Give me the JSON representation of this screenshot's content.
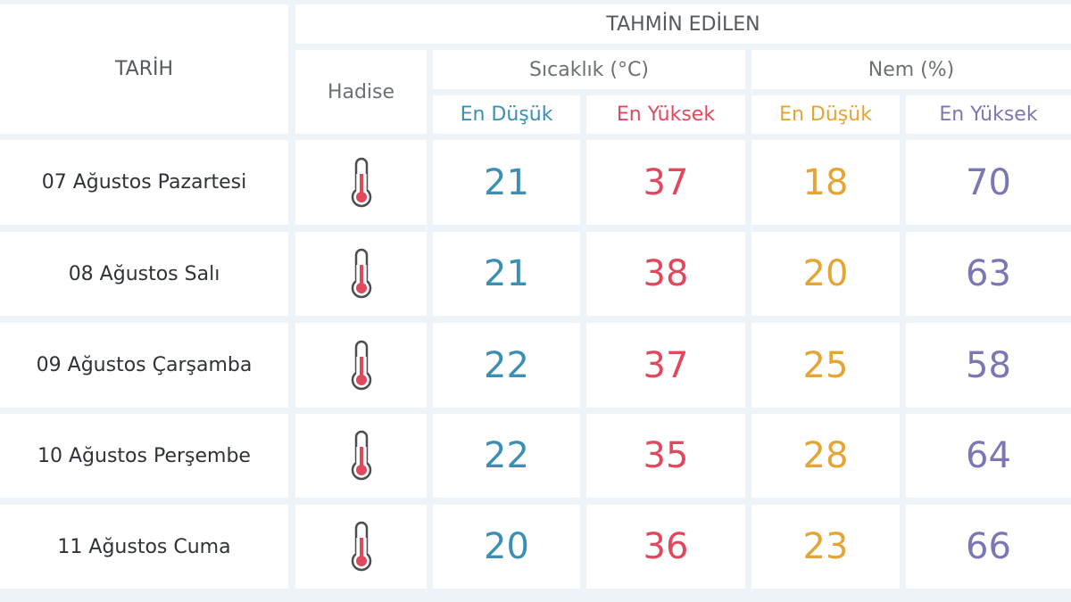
{
  "header": {
    "date_label": "TARİH",
    "forecast_label": "TAHMİN EDİLEN",
    "event_label": "Hadise",
    "temp_label": "Sıcaklık (°C)",
    "humidity_label": "Nem (%)",
    "temp_low": "En Düşük",
    "temp_high": "En Yüksek",
    "hum_low": "En Düşük",
    "hum_high": "En Yüksek"
  },
  "rows": [
    {
      "date": "07 Ağustos Pazartesi",
      "icon": "thermometer-icon",
      "temp_low": "21",
      "temp_high": "37",
      "hum_low": "18",
      "hum_high": "70"
    },
    {
      "date": "08 Ağustos Salı",
      "icon": "thermometer-icon",
      "temp_low": "21",
      "temp_high": "38",
      "hum_low": "20",
      "hum_high": "63"
    },
    {
      "date": "09 Ağustos Çarşamba",
      "icon": "thermometer-icon",
      "temp_low": "22",
      "temp_high": "37",
      "hum_low": "25",
      "hum_high": "58"
    },
    {
      "date": "10 Ağustos Perşembe",
      "icon": "thermometer-icon",
      "temp_low": "22",
      "temp_high": "35",
      "hum_low": "28",
      "hum_high": "64"
    },
    {
      "date": "11 Ağustos Cuma",
      "icon": "thermometer-icon",
      "temp_low": "20",
      "temp_high": "36",
      "hum_low": "23",
      "hum_high": "66"
    }
  ],
  "colors": {
    "temp_low": "#3b8fb5",
    "temp_high": "#e0485e",
    "hum_low": "#e5a535",
    "hum_high": "#7b77b3",
    "background": "#eef3f8"
  }
}
